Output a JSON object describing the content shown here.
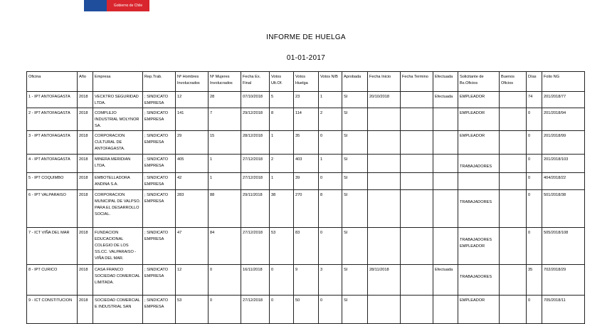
{
  "logo": {
    "text": "Gobierno de Chile",
    "colors": [
      "#1f4e9c",
      "#d9262e"
    ]
  },
  "report": {
    "title": "INFORME DE HUELGA",
    "date": "01-01-2017"
  },
  "table": {
    "headers": [
      "Oficina",
      "Año",
      "Empresa",
      "Rep.Trab.",
      "Nº Hombres Involucrados",
      "Nº Mujeres Involucrados",
      "Fecha Ex. Final",
      "Votos Ult.Of.",
      "Votos Huelga",
      "Votos N/B",
      "Aprobada",
      "Fecha Inicio",
      "Fecha Termino",
      "Efectuada",
      "Solicitante de Bs.Oficios",
      "Buenos Oficios",
      "Días",
      "Folio NG"
    ],
    "rows": [
      [
        "1 - IPT ANTOFAGASTA",
        "2018",
        "VECKTRO SEGURIDAD LTDA.",
        "; SINDICATO EMPRESA",
        "12",
        "28",
        "07/10/2018",
        "5",
        "23",
        "1",
        "SI",
        "20/10/2018",
        "",
        "Efectuada",
        "EMPLEADOR",
        "",
        "74",
        "201/2018/77"
      ],
      [
        "2 - IPT ANTOFAGASTA",
        "2018",
        "COMPLEJO INDUSTRIAL MOLYNOR SA.",
        "; SINDICATO EMPRESA",
        "141",
        "7",
        "29/12/2018",
        "8",
        "114",
        "2",
        "SI",
        "",
        "",
        "",
        "EMPLEADOR",
        "",
        "0",
        "201/2018/94"
      ],
      [
        "3 - IPT ANTOFAGASTA",
        "2018",
        "CORPORACION CULTURAL DE ANTOFAGASTA.",
        "; SINDICATO EMPRESA",
        "29",
        "15",
        "28/12/2018",
        "1",
        "35",
        "0",
        "SI",
        "",
        "",
        "",
        "EMPLEADOR",
        "",
        "0",
        "201/2018/99"
      ],
      [
        "4 - IPT ANTOFAGASTA",
        "2018",
        "MINERA MERIDIAN LTDA.",
        "; SINDICATO EMPRESA",
        "405",
        "1",
        "27/12/2018",
        "2",
        "403",
        "1",
        "SI",
        "",
        "",
        "",
        "TRABAJADORES",
        "",
        "0",
        "201/2018/103"
      ],
      [
        "5 - IPT COQUIMBO",
        "2018",
        "EMBOTELLADORA ANDINA S.A.",
        "; SINDICATO EMPRESA",
        "42",
        "1",
        "27/12/2018",
        "1",
        "39",
        "0",
        "SI",
        "",
        "",
        "",
        "",
        "",
        "0",
        "404/2018/22"
      ],
      [
        "6 - IPT VALPARAISO",
        "2018",
        "CORPORACION MUNICIPAL DE VALPSO. PARA EL DESARROLLO SOCIAL.",
        "; SINDICATO EMPRESA",
        "283",
        "88",
        "29/11/2018",
        "38",
        "270",
        "8",
        "SI",
        "",
        "",
        "",
        "TRABAJADORES",
        "",
        "0",
        "501/2018/38"
      ],
      [
        "7 - ICT VIÑA DEL MAR",
        "2018",
        "FUNDACION EDUCACIONAL COLEGIO DE LOS SS.CC. VALPARAISO - VIÑA DEL MAR.",
        "; SINDICATO EMPRESA",
        "47",
        "84",
        "27/12/2018",
        "53",
        "83",
        "0",
        "SI",
        "",
        "",
        "",
        "TRABAJADORES EMPLEADOR",
        "",
        "0",
        "505/2018/108"
      ],
      [
        "8 - IPT CURICO",
        "2018",
        "CASA FRANCO SOCIEDAD COMERCIAL LIMITADA.",
        "; SINDICATO EMPRESA",
        "12",
        "0",
        "16/11/2018",
        "0",
        "9",
        "3",
        "SI",
        "28/11/2018",
        "",
        "Efectuada",
        "TRABAJADORES",
        "",
        "35",
        "702/2018/29"
      ],
      [
        "9 - ICT CONSTITUCION",
        "2018",
        "SOCIEDAD COMERCIAL E INDUSTRIAL SAN",
        "; SINDICATO EMPRESA",
        "53",
        "0",
        "27/12/2018",
        "0",
        "50",
        "0",
        "SI",
        "",
        "",
        "",
        "EMPLEADOR",
        "",
        "0",
        "705/2018/11"
      ]
    ]
  }
}
